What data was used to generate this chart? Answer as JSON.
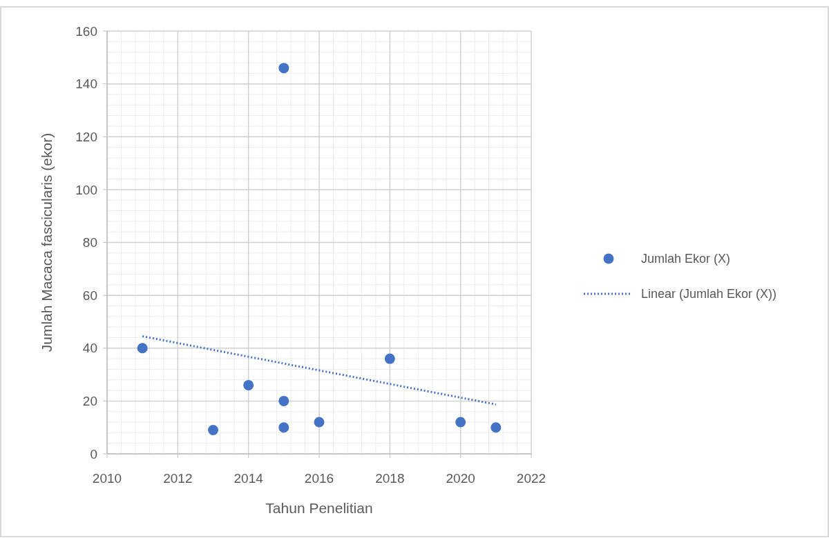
{
  "chart_data": {
    "type": "scatter",
    "xlabel": "Tahun Penelitian",
    "ylabel": "Jumlah Macaca fascicularis (ekor)",
    "x": [
      2011,
      2013,
      2014,
      2015,
      2015,
      2015,
      2016,
      2018,
      2020,
      2021
    ],
    "series": [
      {
        "name": "Jumlah Ekor (X)",
        "color": "#4472c4",
        "marker": "circle",
        "values": [
          40,
          9,
          26,
          146,
          20,
          10,
          12,
          36,
          12,
          10
        ]
      },
      {
        "name": "Linear (Jumlah Ekor (X))",
        "type": "line",
        "color": "#4472c4",
        "line_style": "dotted",
        "marker": "none",
        "x": [
          2011,
          2021
        ],
        "values": [
          44.5,
          18.7
        ]
      }
    ],
    "xlim": [
      2010,
      2022
    ],
    "xticks": [
      2010,
      2012,
      2014,
      2016,
      2018,
      2020,
      2022
    ],
    "ylim": [
      0,
      160
    ],
    "yticks": [
      0,
      20,
      40,
      60,
      80,
      100,
      120,
      140,
      160
    ],
    "grid": true,
    "legend": "right"
  }
}
